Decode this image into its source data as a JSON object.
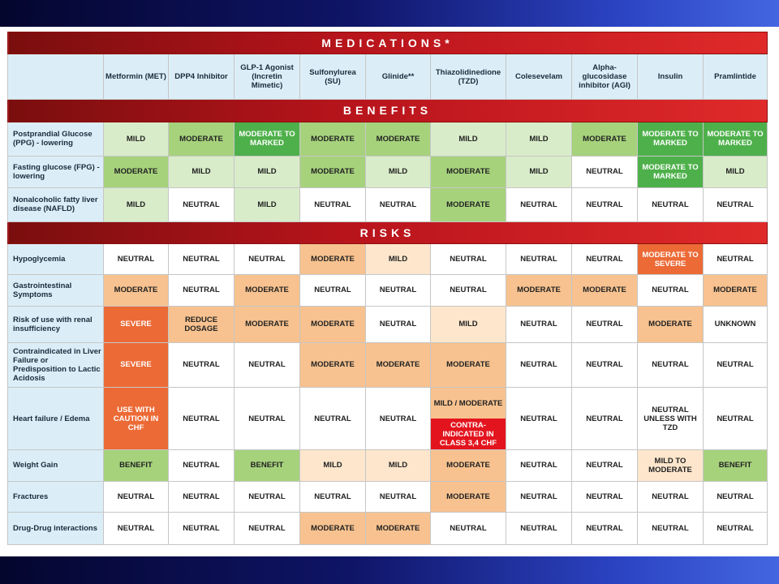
{
  "colors": {
    "benefit_neutral": "#ffffff",
    "benefit_mild": "#d8ecc9",
    "benefit_moderate": "#a6d27c",
    "benefit_marked": "#4eb04a",
    "risk_mild": "#fde6cc",
    "risk_moderate": "#f7c28f",
    "risk_severe": "#ec6a36",
    "risk_contraindicated": "#e3141e",
    "header_band": "#c8161d",
    "label_bg": "#dbeef8"
  },
  "table": {
    "title": "MEDICATIONS*",
    "columns": [
      "Metformin (MET)",
      "DPP4 Inhibitor",
      "GLP-1 Agonist (Incretin Mimetic)",
      "Sulfonylurea (SU)",
      "Glinide**",
      "Thiazolidinedione (TZD)",
      "Colesevelam",
      "Alpha-glucosidase inhibitor (AGI)",
      "Insulin",
      "Pramlintide"
    ],
    "benefits_title": "BENEFITS",
    "benefits": [
      {
        "label": "Postprandial Glucose (PPG) - lowering",
        "cells": [
          {
            "text": "MILD",
            "level": "mild"
          },
          {
            "text": "MODERATE",
            "level": "moderate"
          },
          {
            "text": "MODERATE TO MARKED",
            "level": "marked"
          },
          {
            "text": "MODERATE",
            "level": "moderate"
          },
          {
            "text": "MODERATE",
            "level": "moderate"
          },
          {
            "text": "MILD",
            "level": "mild"
          },
          {
            "text": "MILD",
            "level": "mild"
          },
          {
            "text": "MODERATE",
            "level": "moderate"
          },
          {
            "text": "MODERATE TO MARKED",
            "level": "marked"
          },
          {
            "text": "MODERATE TO MARKED",
            "level": "marked"
          }
        ]
      },
      {
        "label": "Fasting glucose (FPG) - lowering",
        "cells": [
          {
            "text": "MODERATE",
            "level": "moderate"
          },
          {
            "text": "MILD",
            "level": "mild"
          },
          {
            "text": "MILD",
            "level": "mild"
          },
          {
            "text": "MODERATE",
            "level": "moderate"
          },
          {
            "text": "MILD",
            "level": "mild"
          },
          {
            "text": "MODERATE",
            "level": "moderate"
          },
          {
            "text": "MILD",
            "level": "mild"
          },
          {
            "text": "NEUTRAL",
            "level": "neutral"
          },
          {
            "text": "MODERATE TO MARKED",
            "level": "marked"
          },
          {
            "text": "MILD",
            "level": "mild"
          }
        ]
      },
      {
        "label": "Nonalcoholic fatty liver disease (NAFLD)",
        "cells": [
          {
            "text": "MILD",
            "level": "mild"
          },
          {
            "text": "NEUTRAL",
            "level": "neutral"
          },
          {
            "text": "MILD",
            "level": "mild"
          },
          {
            "text": "NEUTRAL",
            "level": "neutral"
          },
          {
            "text": "NEUTRAL",
            "level": "neutral"
          },
          {
            "text": "MODERATE",
            "level": "moderate"
          },
          {
            "text": "NEUTRAL",
            "level": "neutral"
          },
          {
            "text": "NEUTRAL",
            "level": "neutral"
          },
          {
            "text": "NEUTRAL",
            "level": "neutral"
          },
          {
            "text": "NEUTRAL",
            "level": "neutral"
          }
        ]
      }
    ],
    "risks_title": "RISKS",
    "risks": [
      {
        "label": "Hypoglycemia",
        "cells": [
          {
            "text": "NEUTRAL",
            "level": "neutral"
          },
          {
            "text": "NEUTRAL",
            "level": "neutral"
          },
          {
            "text": "NEUTRAL",
            "level": "neutral"
          },
          {
            "text": "MODERATE",
            "level": "moderate"
          },
          {
            "text": "MILD",
            "level": "mild"
          },
          {
            "text": "NEUTRAL",
            "level": "neutral"
          },
          {
            "text": "NEUTRAL",
            "level": "neutral"
          },
          {
            "text": "NEUTRAL",
            "level": "neutral"
          },
          {
            "text": "MODERATE TO SEVERE",
            "level": "moderate-severe"
          },
          {
            "text": "NEUTRAL",
            "level": "neutral"
          }
        ]
      },
      {
        "label": "Gastrointestinal Symptoms",
        "cells": [
          {
            "text": "MODERATE",
            "level": "moderate"
          },
          {
            "text": "NEUTRAL",
            "level": "neutral"
          },
          {
            "text": "MODERATE",
            "level": "moderate"
          },
          {
            "text": "NEUTRAL",
            "level": "neutral"
          },
          {
            "text": "NEUTRAL",
            "level": "neutral"
          },
          {
            "text": "NEUTRAL",
            "level": "neutral"
          },
          {
            "text": "MODERATE",
            "level": "moderate"
          },
          {
            "text": "MODERATE",
            "level": "moderate"
          },
          {
            "text": "NEUTRAL",
            "level": "neutral"
          },
          {
            "text": "MODERATE",
            "level": "moderate"
          }
        ]
      },
      {
        "label": "Risk of use with renal insufficiency",
        "cells": [
          {
            "text": "SEVERE",
            "level": "severe"
          },
          {
            "text": "REDUCE DOSAGE",
            "level": "moderate"
          },
          {
            "text": "MODERATE",
            "level": "moderate"
          },
          {
            "text": "MODERATE",
            "level": "moderate"
          },
          {
            "text": "NEUTRAL",
            "level": "neutral"
          },
          {
            "text": "MILD",
            "level": "mild"
          },
          {
            "text": "NEUTRAL",
            "level": "neutral"
          },
          {
            "text": "NEUTRAL",
            "level": "neutral"
          },
          {
            "text": "MODERATE",
            "level": "moderate"
          },
          {
            "text": "UNKNOWN",
            "level": "neutral"
          }
        ]
      },
      {
        "label": "Contraindicated in Liver Failure or Predisposition to Lactic Acidosis",
        "cells": [
          {
            "text": "SEVERE",
            "level": "severe"
          },
          {
            "text": "NEUTRAL",
            "level": "neutral"
          },
          {
            "text": "NEUTRAL",
            "level": "neutral"
          },
          {
            "text": "MODERATE",
            "level": "moderate"
          },
          {
            "text": "MODERATE",
            "level": "moderate"
          },
          {
            "text": "MODERATE",
            "level": "moderate"
          },
          {
            "text": "NEUTRAL",
            "level": "neutral"
          },
          {
            "text": "NEUTRAL",
            "level": "neutral"
          },
          {
            "text": "NEUTRAL",
            "level": "neutral"
          },
          {
            "text": "NEUTRAL",
            "level": "neutral"
          }
        ]
      },
      {
        "label": "Heart failure / Edema",
        "cells": [
          {
            "text": "USE WITH CAUTION IN CHF",
            "level": "severe"
          },
          {
            "text": "NEUTRAL",
            "level": "neutral"
          },
          {
            "text": "NEUTRAL",
            "level": "neutral"
          },
          {
            "text": "NEUTRAL",
            "level": "neutral"
          },
          {
            "text": "NEUTRAL",
            "level": "neutral"
          },
          {
            "text": "MILD / MODERATE",
            "level": "moderate",
            "text2": "CONTRA-INDICATED IN CLASS 3,4 CHF",
            "level2": "contraindicated"
          },
          {
            "text": "NEUTRAL",
            "level": "neutral"
          },
          {
            "text": "NEUTRAL",
            "level": "neutral"
          },
          {
            "text": "NEUTRAL UNLESS WITH TZD",
            "level": "neutral"
          },
          {
            "text": "NEUTRAL",
            "level": "neutral"
          }
        ]
      },
      {
        "label": "Weight Gain",
        "cells": [
          {
            "text": "BENEFIT",
            "level": "benefit"
          },
          {
            "text": "NEUTRAL",
            "level": "neutral"
          },
          {
            "text": "BENEFIT",
            "level": "benefit"
          },
          {
            "text": "MILD",
            "level": "mild"
          },
          {
            "text": "MILD",
            "level": "mild"
          },
          {
            "text": "MODERATE",
            "level": "moderate"
          },
          {
            "text": "NEUTRAL",
            "level": "neutral"
          },
          {
            "text": "NEUTRAL",
            "level": "neutral"
          },
          {
            "text": "MILD TO MODERATE",
            "level": "mild"
          },
          {
            "text": "BENEFIT",
            "level": "benefit"
          }
        ]
      },
      {
        "label": "Fractures",
        "cells": [
          {
            "text": "NEUTRAL",
            "level": "neutral"
          },
          {
            "text": "NEUTRAL",
            "level": "neutral"
          },
          {
            "text": "NEUTRAL",
            "level": "neutral"
          },
          {
            "text": "NEUTRAL",
            "level": "neutral"
          },
          {
            "text": "NEUTRAL",
            "level": "neutral"
          },
          {
            "text": "MODERATE",
            "level": "moderate"
          },
          {
            "text": "NEUTRAL",
            "level": "neutral"
          },
          {
            "text": "NEUTRAL",
            "level": "neutral"
          },
          {
            "text": "NEUTRAL",
            "level": "neutral"
          },
          {
            "text": "NEUTRAL",
            "level": "neutral"
          }
        ]
      },
      {
        "label": "Drug-Drug interactions",
        "cells": [
          {
            "text": "NEUTRAL",
            "level": "neutral"
          },
          {
            "text": "NEUTRAL",
            "level": "neutral"
          },
          {
            "text": "NEUTRAL",
            "level": "neutral"
          },
          {
            "text": "MODERATE",
            "level": "moderate"
          },
          {
            "text": "MODERATE",
            "level": "moderate"
          },
          {
            "text": "NEUTRAL",
            "level": "neutral"
          },
          {
            "text": "NEUTRAL",
            "level": "neutral"
          },
          {
            "text": "NEUTRAL",
            "level": "neutral"
          },
          {
            "text": "NEUTRAL",
            "level": "neutral"
          },
          {
            "text": "NEUTRAL",
            "level": "neutral"
          }
        ]
      }
    ]
  }
}
